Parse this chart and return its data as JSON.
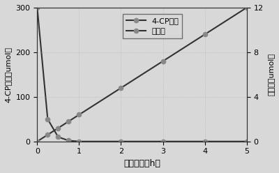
{
  "cp_x": [
    0,
    0.25,
    0.5,
    0.75,
    1,
    2,
    3,
    4,
    5
  ],
  "cp_y": [
    300,
    50,
    10,
    2,
    0,
    0,
    0,
    0,
    0
  ],
  "h2_x": [
    0,
    0.25,
    0.5,
    0.75,
    1,
    2,
    3,
    4,
    5
  ],
  "h2_y": [
    0,
    0.6,
    1.2,
    1.8,
    2.4,
    4.8,
    7.2,
    9.6,
    12
  ],
  "cp_label": "4-CP的量",
  "h2_label": "产氢量",
  "xlabel": "反应时间（h）",
  "ylabel_left": "4-CP的量（umol）",
  "ylabel_right": "产氢量（umol）",
  "ylim_left": [
    0,
    300
  ],
  "ylim_right": [
    0,
    12
  ],
  "xlim": [
    0,
    5
  ],
  "yticks_left": [
    0,
    100,
    200,
    300
  ],
  "yticks_right": [
    0,
    4,
    8,
    12
  ],
  "xticks": [
    0,
    1,
    2,
    3,
    4,
    5
  ],
  "line_color": "#333333",
  "marker_color": "#888888",
  "bg_color": "#d8d8d8"
}
